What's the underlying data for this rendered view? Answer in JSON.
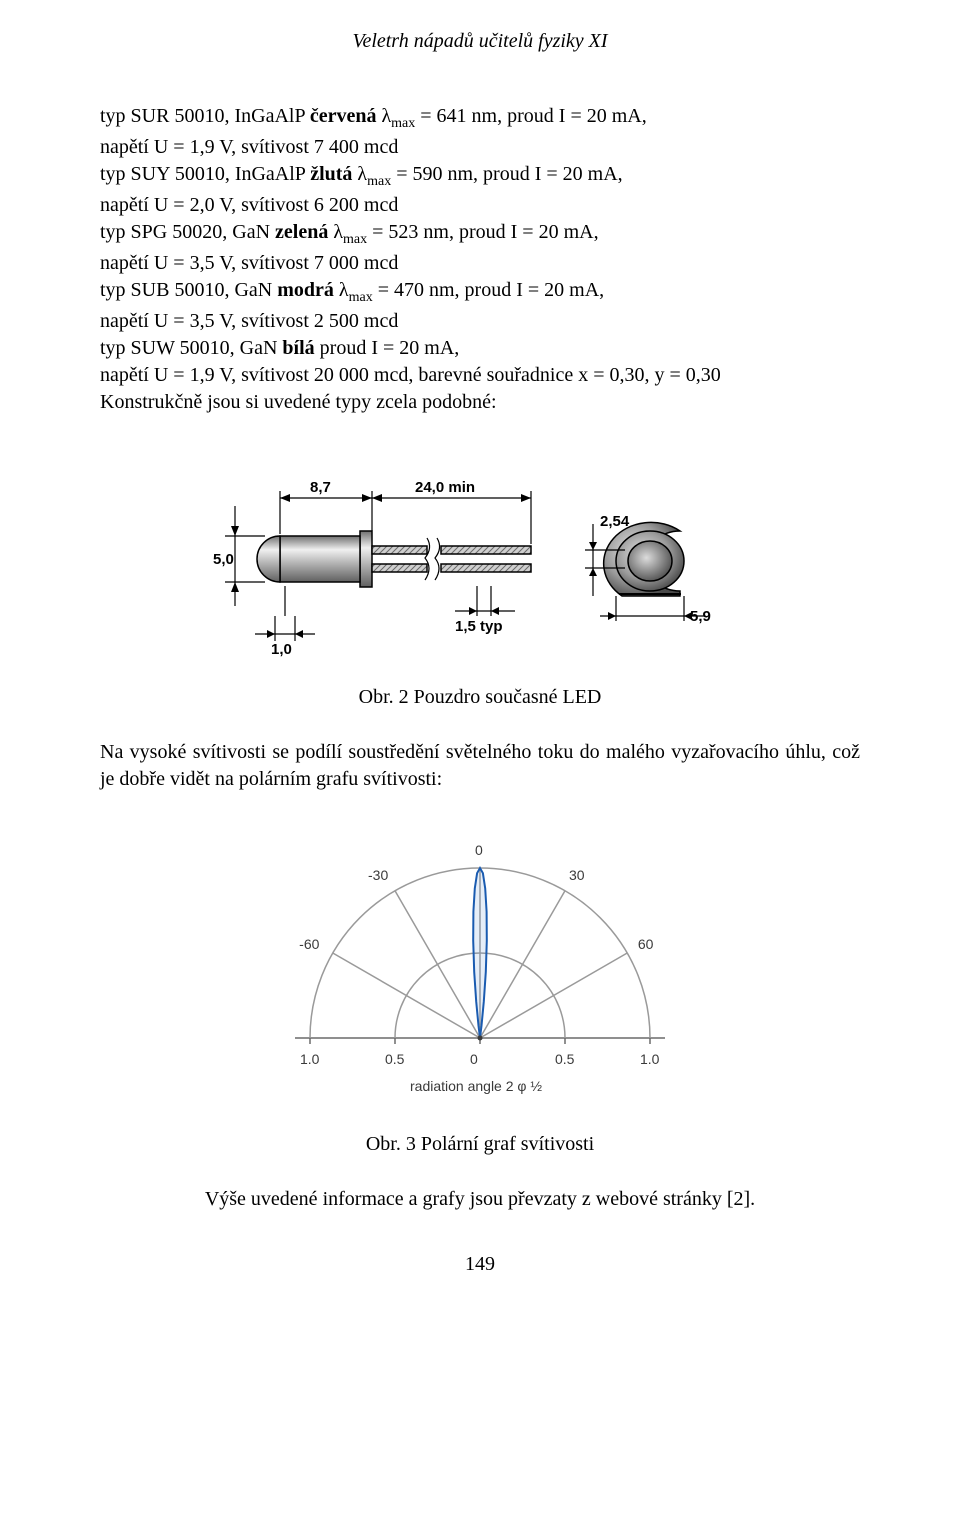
{
  "header": "Veletrh nápadů učitelů fyziky XI",
  "paraA": {
    "l1a": "typ SUR 50010, InGaAlP ",
    "l1b": "červená",
    "l1c": "  λ",
    "l1d": " = 641 nm, proud I = 20 mA,",
    "l2": "napětí U = 1,9 V, svítivost 7 400 mcd",
    "l3a": "typ SUY 50010, InGaAlP ",
    "l3b": "žlutá",
    "l3c": " λ",
    "l3d": " = 590 nm, proud I = 20 mA,",
    "l4": "napětí U = 2,0 V, svítivost 6 200 mcd",
    "l5a": "typ SPG 50020, GaN ",
    "l5b": "zelená",
    "l5c": " λ",
    "l5d": " = 523 nm, proud I = 20 mA,",
    "l6": "napětí U = 3,5 V, svítivost 7 000 mcd",
    "l7a": "typ SUB 50010, GaN ",
    "l7b": "modrá",
    "l7c": " λ",
    "l7d": " = 470 nm, proud I = 20 mA,",
    "l8": "napětí U = 3,5 V, svítivost 2 500 mcd",
    "l9a": "typ SUW 50010, GaN ",
    "l9b": "bílá",
    "l9c": " proud I = 20 mA,",
    "l10": "napětí U = 1,9 V, svítivost 20 000 mcd, barevné souřadnice x = 0,30, y = 0,30",
    "l11": "Konstrukčně jsou si uvedené typy zcela podobné:"
  },
  "sub_lambda": "max",
  "fig1": {
    "caption": "Obr. 2 Pouzdro současné LED",
    "dims": {
      "head_len": "8,7",
      "lead_min": "24,0 min",
      "pitch": "2,54",
      "dia_body": "5,0",
      "lead_w": "1,0",
      "lead_t": "1,5 typ",
      "flange": "5,9"
    },
    "colors": {
      "body_grad_light": "#f2f2f2",
      "body_grad_mid": "#bcbcbc",
      "body_grad_dark": "#6d6d6d",
      "dim_line": "#000000",
      "bg": "#ffffff"
    }
  },
  "paraB": "Na vysoké svítivosti se podílí soustředění světelného toku do malého vyzařovacího úhlu, což je dobře vidět na polárním grafu svítivosti:",
  "fig2": {
    "caption": "Obr. 3 Polární graf svítivosti",
    "axis_title": "radiation angle 2 φ ½",
    "angle_ticks": [
      -60,
      -30,
      0,
      30,
      60
    ],
    "x_ticks": [
      "1.0",
      "0.5",
      "0",
      "0.5",
      "1.0"
    ],
    "colors": {
      "arc": "#9a9a9a",
      "baseline": "#6a6a6a",
      "curve": "#1a5bb0",
      "curve_fill": "rgba(110,160,220,0.12)",
      "text": "#3a3a3a",
      "bg": "#ffffff"
    },
    "lobe": {
      "half_width_deg": 8,
      "radius_full": 1.0
    }
  },
  "paraC": "Výše uvedené informace a grafy jsou převzaty z webové stránky [2].",
  "page_number": "149"
}
